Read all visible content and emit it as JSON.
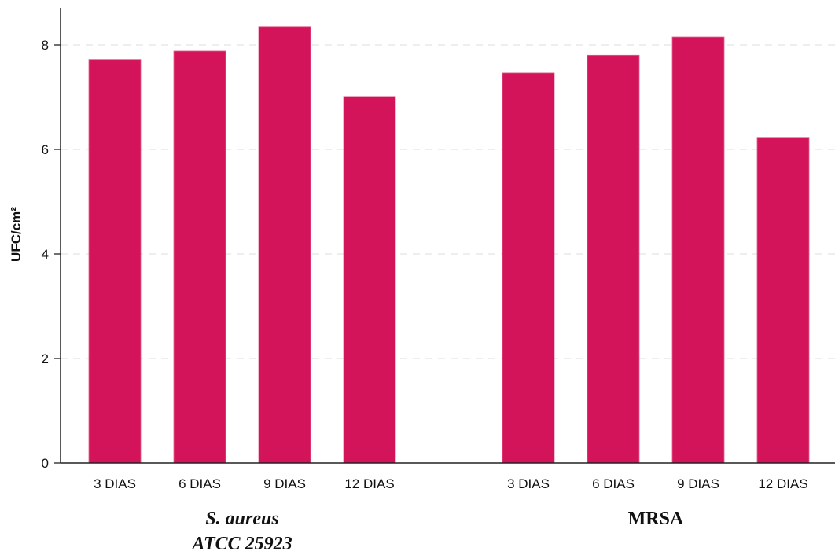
{
  "chart_data": {
    "type": "bar",
    "title": "",
    "xlabel": "",
    "ylabel": "UFC/cm²",
    "ylim": [
      0,
      8.8
    ],
    "yticks": [
      0,
      2,
      4,
      6,
      8
    ],
    "grid": true,
    "bar_color": "#D4145A",
    "groups": [
      {
        "label_lines": [
          "S. aureus",
          "ATCC 25923"
        ],
        "italic": true,
        "categories": [
          "3 DIAS",
          "6 DIAS",
          "9 DIAS",
          "12 DIAS"
        ],
        "values": [
          7.72,
          7.88,
          8.35,
          7.01
        ]
      },
      {
        "label_lines": [
          "MRSA"
        ],
        "italic": false,
        "categories": [
          "3 DIAS",
          "6 DIAS",
          "9 DIAS",
          "12 DIAS"
        ],
        "values": [
          7.46,
          7.8,
          8.15,
          6.23
        ]
      }
    ]
  }
}
